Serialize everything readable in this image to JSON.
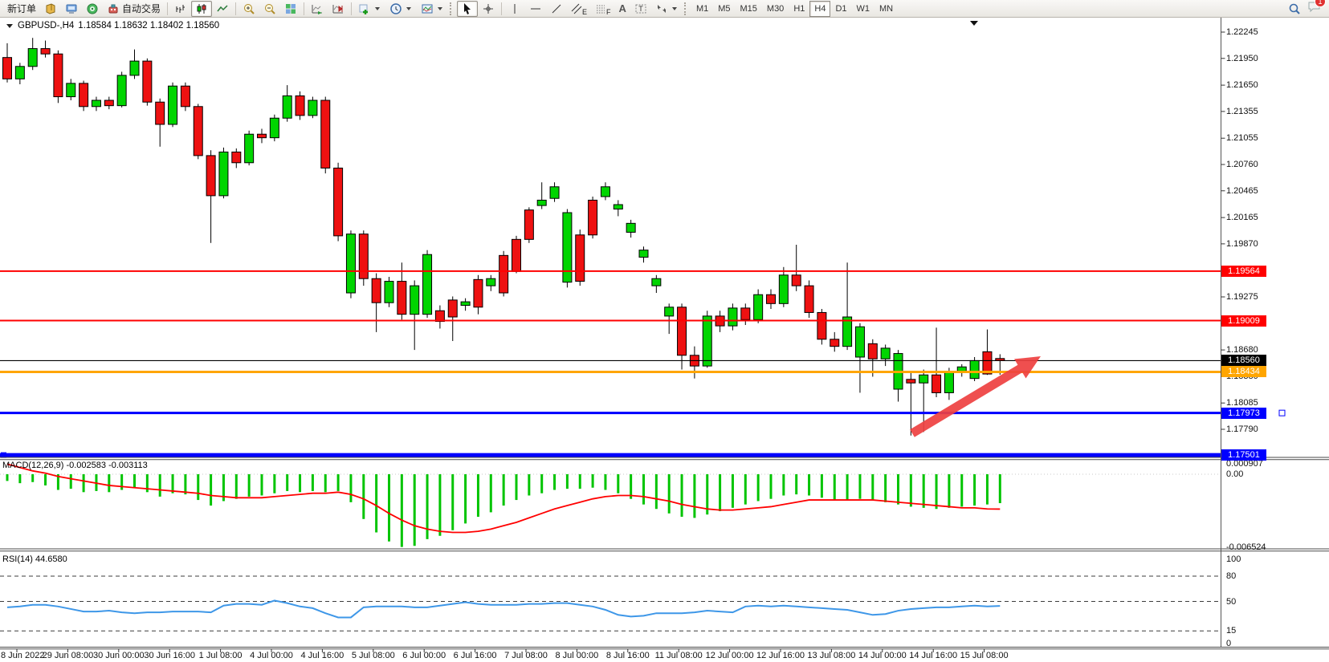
{
  "toolbar": {
    "new_order_label": "新订单",
    "autotrading_label": "自动交易",
    "text_tool_label": "A",
    "channel_tool_tag": "E",
    "fibo_tool_tag": "F",
    "timeframes": [
      "M1",
      "M5",
      "M15",
      "M30",
      "H1",
      "H4",
      "D1",
      "W1",
      "MN"
    ],
    "active_timeframe": "H4",
    "notification_badge": "1"
  },
  "chart": {
    "symbol_title": "GBPUSD-,H4",
    "ohlc_text": "1.18584 1.18632 1.18402 1.18560",
    "macd_label": "MACD(12,26,9) -0.002583 -0.003113",
    "rsi_label": "RSI(14) 44.6580"
  },
  "price_axis": {
    "ticks": [
      "1.22245",
      "1.21950",
      "1.21650",
      "1.21355",
      "1.21055",
      "1.20760",
      "1.20465",
      "1.20165",
      "1.19870",
      "1.19275",
      "1.18975",
      "1.18680",
      "1.18380",
      "1.18085",
      "1.17790"
    ],
    "badges": [
      {
        "label": "1.19564",
        "value": 1.19564,
        "bg": "#ff0000"
      },
      {
        "label": "1.19009",
        "value": 1.19009,
        "bg": "#ff0000"
      },
      {
        "label": "1.18560",
        "value": 1.1856,
        "bg": "#000000"
      },
      {
        "label": "1.18434",
        "value": 1.18434,
        "bg": "#ffa500"
      },
      {
        "label": "1.17973",
        "value": 1.17973,
        "bg": "#0000ff"
      },
      {
        "label": "1.17501",
        "value": 1.17501,
        "bg": "#0000ff"
      }
    ]
  },
  "macd_axis": [
    {
      "label": "0.000907",
      "value": 0.000907
    },
    {
      "label": "0.00",
      "value": 0.0
    },
    {
      "label": "-0.006524",
      "value": -0.006524
    }
  ],
  "rsi_axis": [
    {
      "label": "100",
      "value": 100
    },
    {
      "label": "80",
      "value": 80
    },
    {
      "label": "50",
      "value": 50
    },
    {
      "label": "15",
      "value": 15
    },
    {
      "label": "0",
      "value": 0
    }
  ],
  "time_axis": [
    "8 Jun 2022",
    "29 Jun 08:00",
    "30 Jun 00:00",
    "30 Jun 16:00",
    "1 Jul 08:00",
    "4 Jul 00:00",
    "4 Jul 16:00",
    "5 Jul 08:00",
    "6 Jul 00:00",
    "6 Jul 16:00",
    "7 Jul 08:00",
    "8 Jul 00:00",
    "8 Jul 16:00",
    "11 Jul 08:00",
    "12 Jul 00:00",
    "12 Jul 16:00",
    "13 Jul 08:00",
    "14 Jul 00:00",
    "14 Jul 16:00",
    "15 Jul 08:00"
  ],
  "hlines": [
    {
      "price": 1.19564,
      "color": "#ff0000",
      "width": 2
    },
    {
      "price": 1.19009,
      "color": "#ff0000",
      "width": 2
    },
    {
      "price": 1.1856,
      "color": "#000000",
      "width": 1.2
    },
    {
      "price": 1.18434,
      "color": "#ffa500",
      "width": 3
    },
    {
      "price": 1.17973,
      "color": "#0000ff",
      "width": 3,
      "handle_right": true
    },
    {
      "price": 1.17501,
      "color": "#0000ff",
      "width": 5,
      "handle_left": true
    }
  ],
  "annotations": {
    "arrow": {
      "from": [
        1136,
        540
      ],
      "to": [
        1296,
        444
      ],
      "color": "#ee4040"
    },
    "shift_marker_x": 1213
  },
  "colors": {
    "up_candle": "#00d500",
    "down_candle": "#ee1111",
    "candle_border": "#000000",
    "macd_hist": "#00c400",
    "macd_signal": "#ff0000",
    "rsi_line": "#3e97e8",
    "level_dash": "#3c3c3c",
    "axis_border": "#555555"
  },
  "chart_data": [
    {
      "type": "candlestick",
      "title": "GBPUSD-,H4",
      "timeframe": "H4",
      "ylim": [
        1.1745,
        1.2235
      ],
      "x_labels": [
        "8 Jun 2022",
        "29 Jun 08:00",
        "30 Jun 00:00",
        "30 Jun 16:00",
        "1 Jul 08:00",
        "4 Jul 00:00",
        "4 Jul 16:00",
        "5 Jul 08:00",
        "6 Jul 00:00",
        "6 Jul 16:00",
        "7 Jul 08:00",
        "8 Jul 00:00",
        "8 Jul 16:00",
        "11 Jul 08:00",
        "12 Jul 00:00",
        "12 Jul 16:00",
        "13 Jul 08:00",
        "14 Jul 00:00",
        "14 Jul 16:00",
        "15 Jul 08:00"
      ],
      "ohlc": [
        [
          1.2196,
          1.2212,
          1.2168,
          1.2172
        ],
        [
          1.2172,
          1.219,
          1.2166,
          1.2186
        ],
        [
          1.2186,
          1.2218,
          1.2182,
          1.2206
        ],
        [
          1.2206,
          1.2215,
          1.2196,
          1.22
        ],
        [
          1.22,
          1.2204,
          1.2145,
          1.2152
        ],
        [
          1.2152,
          1.2172,
          1.2148,
          1.2167
        ],
        [
          1.2167,
          1.217,
          1.2136,
          1.2141
        ],
        [
          1.2141,
          1.2152,
          1.2136,
          1.2148
        ],
        [
          1.2148,
          1.2152,
          1.2138,
          1.2142
        ],
        [
          1.2142,
          1.218,
          1.214,
          1.2176
        ],
        [
          1.2176,
          1.2205,
          1.2172,
          1.2192
        ],
        [
          1.2192,
          1.2195,
          1.2142,
          1.2146
        ],
        [
          1.2146,
          1.215,
          1.2096,
          1.2121
        ],
        [
          1.2121,
          1.2168,
          1.2118,
          1.2164
        ],
        [
          1.2164,
          1.2168,
          1.2136,
          1.2141
        ],
        [
          1.2141,
          1.2144,
          1.2082,
          1.2086
        ],
        [
          1.2086,
          1.2092,
          1.1988,
          1.2041
        ],
        [
          1.2041,
          1.2095,
          1.2038,
          1.209
        ],
        [
          1.209,
          1.2094,
          1.2072,
          1.2078
        ],
        [
          1.2078,
          1.2114,
          1.2075,
          1.211
        ],
        [
          1.211,
          1.2116,
          1.21,
          1.2106
        ],
        [
          1.2106,
          1.2132,
          1.2102,
          1.2128
        ],
        [
          1.2128,
          1.2165,
          1.2124,
          1.2153
        ],
        [
          1.2153,
          1.2158,
          1.2126,
          1.2131
        ],
        [
          1.2131,
          1.2152,
          1.2128,
          1.2148
        ],
        [
          1.2148,
          1.2152,
          1.2066,
          1.2072
        ],
        [
          1.2072,
          1.2078,
          1.199,
          1.1996
        ],
        [
          1.1932,
          1.2002,
          1.1926,
          1.1998
        ],
        [
          1.1998,
          1.2002,
          1.194,
          1.1948
        ],
        [
          1.1948,
          1.1954,
          1.1888,
          1.1921
        ],
        [
          1.1921,
          1.195,
          1.1916,
          1.1945
        ],
        [
          1.1945,
          1.1966,
          1.1902,
          1.1908
        ],
        [
          1.1908,
          1.1946,
          1.1868,
          1.194
        ],
        [
          1.1908,
          1.198,
          1.1904,
          1.1975
        ],
        [
          1.1912,
          1.1918,
          1.1892,
          1.19
        ],
        [
          1.1924,
          1.1928,
          1.1878,
          1.1905
        ],
        [
          1.1918,
          1.1926,
          1.1912,
          1.1922
        ],
        [
          1.1947,
          1.1952,
          1.1908,
          1.1916
        ],
        [
          1.194,
          1.1952,
          1.1934,
          1.1948
        ],
        [
          1.1974,
          1.1979,
          1.1928,
          1.1932
        ],
        [
          1.1992,
          1.1996,
          1.1954,
          1.1956
        ],
        [
          1.2025,
          1.2028,
          1.1988,
          1.1992
        ],
        [
          1.203,
          1.2056,
          1.2026,
          1.2036
        ],
        [
          1.2038,
          1.2056,
          1.2034,
          1.2051
        ],
        [
          1.1944,
          1.2026,
          1.1938,
          1.2022
        ],
        [
          1.1997,
          1.2003,
          1.194,
          1.1945
        ],
        [
          1.2036,
          1.204,
          1.1993,
          1.1997
        ],
        [
          1.204,
          1.2056,
          1.2036,
          1.2051
        ],
        [
          1.2026,
          1.2036,
          1.2018,
          1.2031
        ],
        [
          1.2,
          1.2014,
          1.1994,
          1.201
        ],
        [
          1.1972,
          1.1984,
          1.1966,
          1.198
        ],
        [
          1.194,
          1.1952,
          1.1932,
          1.1948
        ],
        [
          1.1906,
          1.192,
          1.1886,
          1.1916
        ],
        [
          1.1916,
          1.192,
          1.1846,
          1.1862
        ],
        [
          1.1862,
          1.1872,
          1.1836,
          1.185
        ],
        [
          1.185,
          1.1912,
          1.1848,
          1.1906
        ],
        [
          1.1906,
          1.1912,
          1.1888,
          1.1895
        ],
        [
          1.1895,
          1.192,
          1.189,
          1.1915
        ],
        [
          1.1915,
          1.192,
          1.1896,
          1.1902
        ],
        [
          1.1902,
          1.1936,
          1.1898,
          1.193
        ],
        [
          1.193,
          1.1936,
          1.1914,
          1.192
        ],
        [
          1.192,
          1.1961,
          1.1916,
          1.1952
        ],
        [
          1.1952,
          1.1986,
          1.1934,
          1.194
        ],
        [
          1.194,
          1.1946,
          1.1904,
          1.191
        ],
        [
          1.191,
          1.1914,
          1.1874,
          1.188
        ],
        [
          1.188,
          1.1888,
          1.1866,
          1.1872
        ],
        [
          1.1872,
          1.1966,
          1.1868,
          1.1905
        ],
        [
          1.186,
          1.1898,
          1.182,
          1.1894
        ],
        [
          1.1875,
          1.188,
          1.1838,
          1.1858
        ],
        [
          1.1858,
          1.1874,
          1.185,
          1.187
        ],
        [
          1.1824,
          1.1868,
          1.181,
          1.1864
        ],
        [
          1.1835,
          1.1842,
          1.1772,
          1.1831
        ],
        [
          1.1831,
          1.1846,
          1.1776,
          1.184
        ],
        [
          1.184,
          1.1893,
          1.1815,
          1.182
        ],
        [
          1.182,
          1.1848,
          1.1812,
          1.1843
        ],
        [
          1.1843,
          1.1852,
          1.1838,
          1.1849
        ],
        [
          1.1836,
          1.186,
          1.1833,
          1.1856
        ],
        [
          1.1866,
          1.1891,
          1.184,
          1.1841
        ],
        [
          1.18584,
          1.18632,
          1.18402,
          1.1856
        ]
      ]
    },
    {
      "type": "bar",
      "name": "MACD(12,26,9)",
      "current_values": [
        -0.002583,
        -0.003113
      ],
      "ylim": [
        -0.006524,
        0.000907
      ],
      "macd": [
        -0.0006,
        -0.0008,
        -0.0007,
        -0.001,
        -0.0014,
        -0.0013,
        -0.0016,
        -0.0015,
        -0.0016,
        -0.0014,
        -0.0012,
        -0.0016,
        -0.002,
        -0.0017,
        -0.0018,
        -0.0023,
        -0.0028,
        -0.0024,
        -0.0022,
        -0.002,
        -0.0019,
        -0.0017,
        -0.0015,
        -0.0016,
        -0.0015,
        -0.0016,
        -0.0015,
        -0.0025,
        -0.004,
        -0.0052,
        -0.006,
        -0.0065,
        -0.0064,
        -0.0058,
        -0.0055,
        -0.005,
        -0.0044,
        -0.0038,
        -0.0034,
        -0.0028,
        -0.0023,
        -0.0019,
        -0.0017,
        -0.0014,
        -0.0013,
        -0.0013,
        -0.0012,
        -0.0014,
        -0.0017,
        -0.0022,
        -0.0027,
        -0.0031,
        -0.0035,
        -0.0038,
        -0.0039,
        -0.0036,
        -0.0033,
        -0.003,
        -0.0027,
        -0.0024,
        -0.0022,
        -0.0019,
        -0.0018,
        -0.0019,
        -0.0021,
        -0.0023,
        -0.0023,
        -0.0022,
        -0.0023,
        -0.0025,
        -0.0027,
        -0.0029,
        -0.003,
        -0.0031,
        -0.003,
        -0.0029,
        -0.0028,
        -0.0027,
        -0.002583
      ],
      "signal": [
        0.000907,
        0.0006,
        0.0003,
        0.0001,
        -0.0002,
        -0.0004,
        -0.0006,
        -0.0008,
        -0.001,
        -0.0011,
        -0.0012,
        -0.0013,
        -0.0014,
        -0.0015,
        -0.0016,
        -0.0017,
        -0.0019,
        -0.002,
        -0.0021,
        -0.0021,
        -0.0021,
        -0.002,
        -0.0019,
        -0.0018,
        -0.0017,
        -0.0017,
        -0.0016,
        -0.0018,
        -0.0022,
        -0.0028,
        -0.0035,
        -0.0041,
        -0.0046,
        -0.0049,
        -0.0051,
        -0.0052,
        -0.0052,
        -0.0051,
        -0.0049,
        -0.0046,
        -0.0043,
        -0.0039,
        -0.0035,
        -0.0031,
        -0.0028,
        -0.0025,
        -0.0022,
        -0.002,
        -0.0019,
        -0.0019,
        -0.002,
        -0.0022,
        -0.0024,
        -0.0027,
        -0.0029,
        -0.0031,
        -0.0032,
        -0.0032,
        -0.0031,
        -0.003,
        -0.0029,
        -0.0027,
        -0.0025,
        -0.0023,
        -0.0023,
        -0.0023,
        -0.0023,
        -0.0023,
        -0.0023,
        -0.0024,
        -0.0025,
        -0.0026,
        -0.0027,
        -0.0028,
        -0.0029,
        -0.003,
        -0.003,
        -0.0031,
        -0.003113
      ]
    },
    {
      "type": "line",
      "name": "RSI(14)",
      "current_value": 44.658,
      "ylim": [
        0,
        100
      ],
      "levels": [
        80,
        50,
        15
      ],
      "values": [
        43,
        44,
        46,
        46,
        44,
        41,
        38,
        38,
        39,
        37,
        36,
        37,
        37,
        38,
        38,
        38,
        37,
        45,
        47,
        47,
        46,
        51,
        48,
        44,
        42,
        36,
        31,
        31,
        43,
        44,
        44,
        44,
        43,
        43,
        45,
        47,
        49,
        47,
        46,
        46,
        46,
        47,
        47,
        48,
        48,
        46,
        44,
        40,
        34,
        32,
        33,
        36,
        36,
        36,
        37,
        39,
        38,
        37,
        44,
        45,
        44,
        45,
        44,
        43,
        42,
        41,
        40,
        37,
        34,
        35,
        39,
        41,
        42,
        43,
        43,
        44,
        45,
        44,
        44.658
      ]
    }
  ]
}
